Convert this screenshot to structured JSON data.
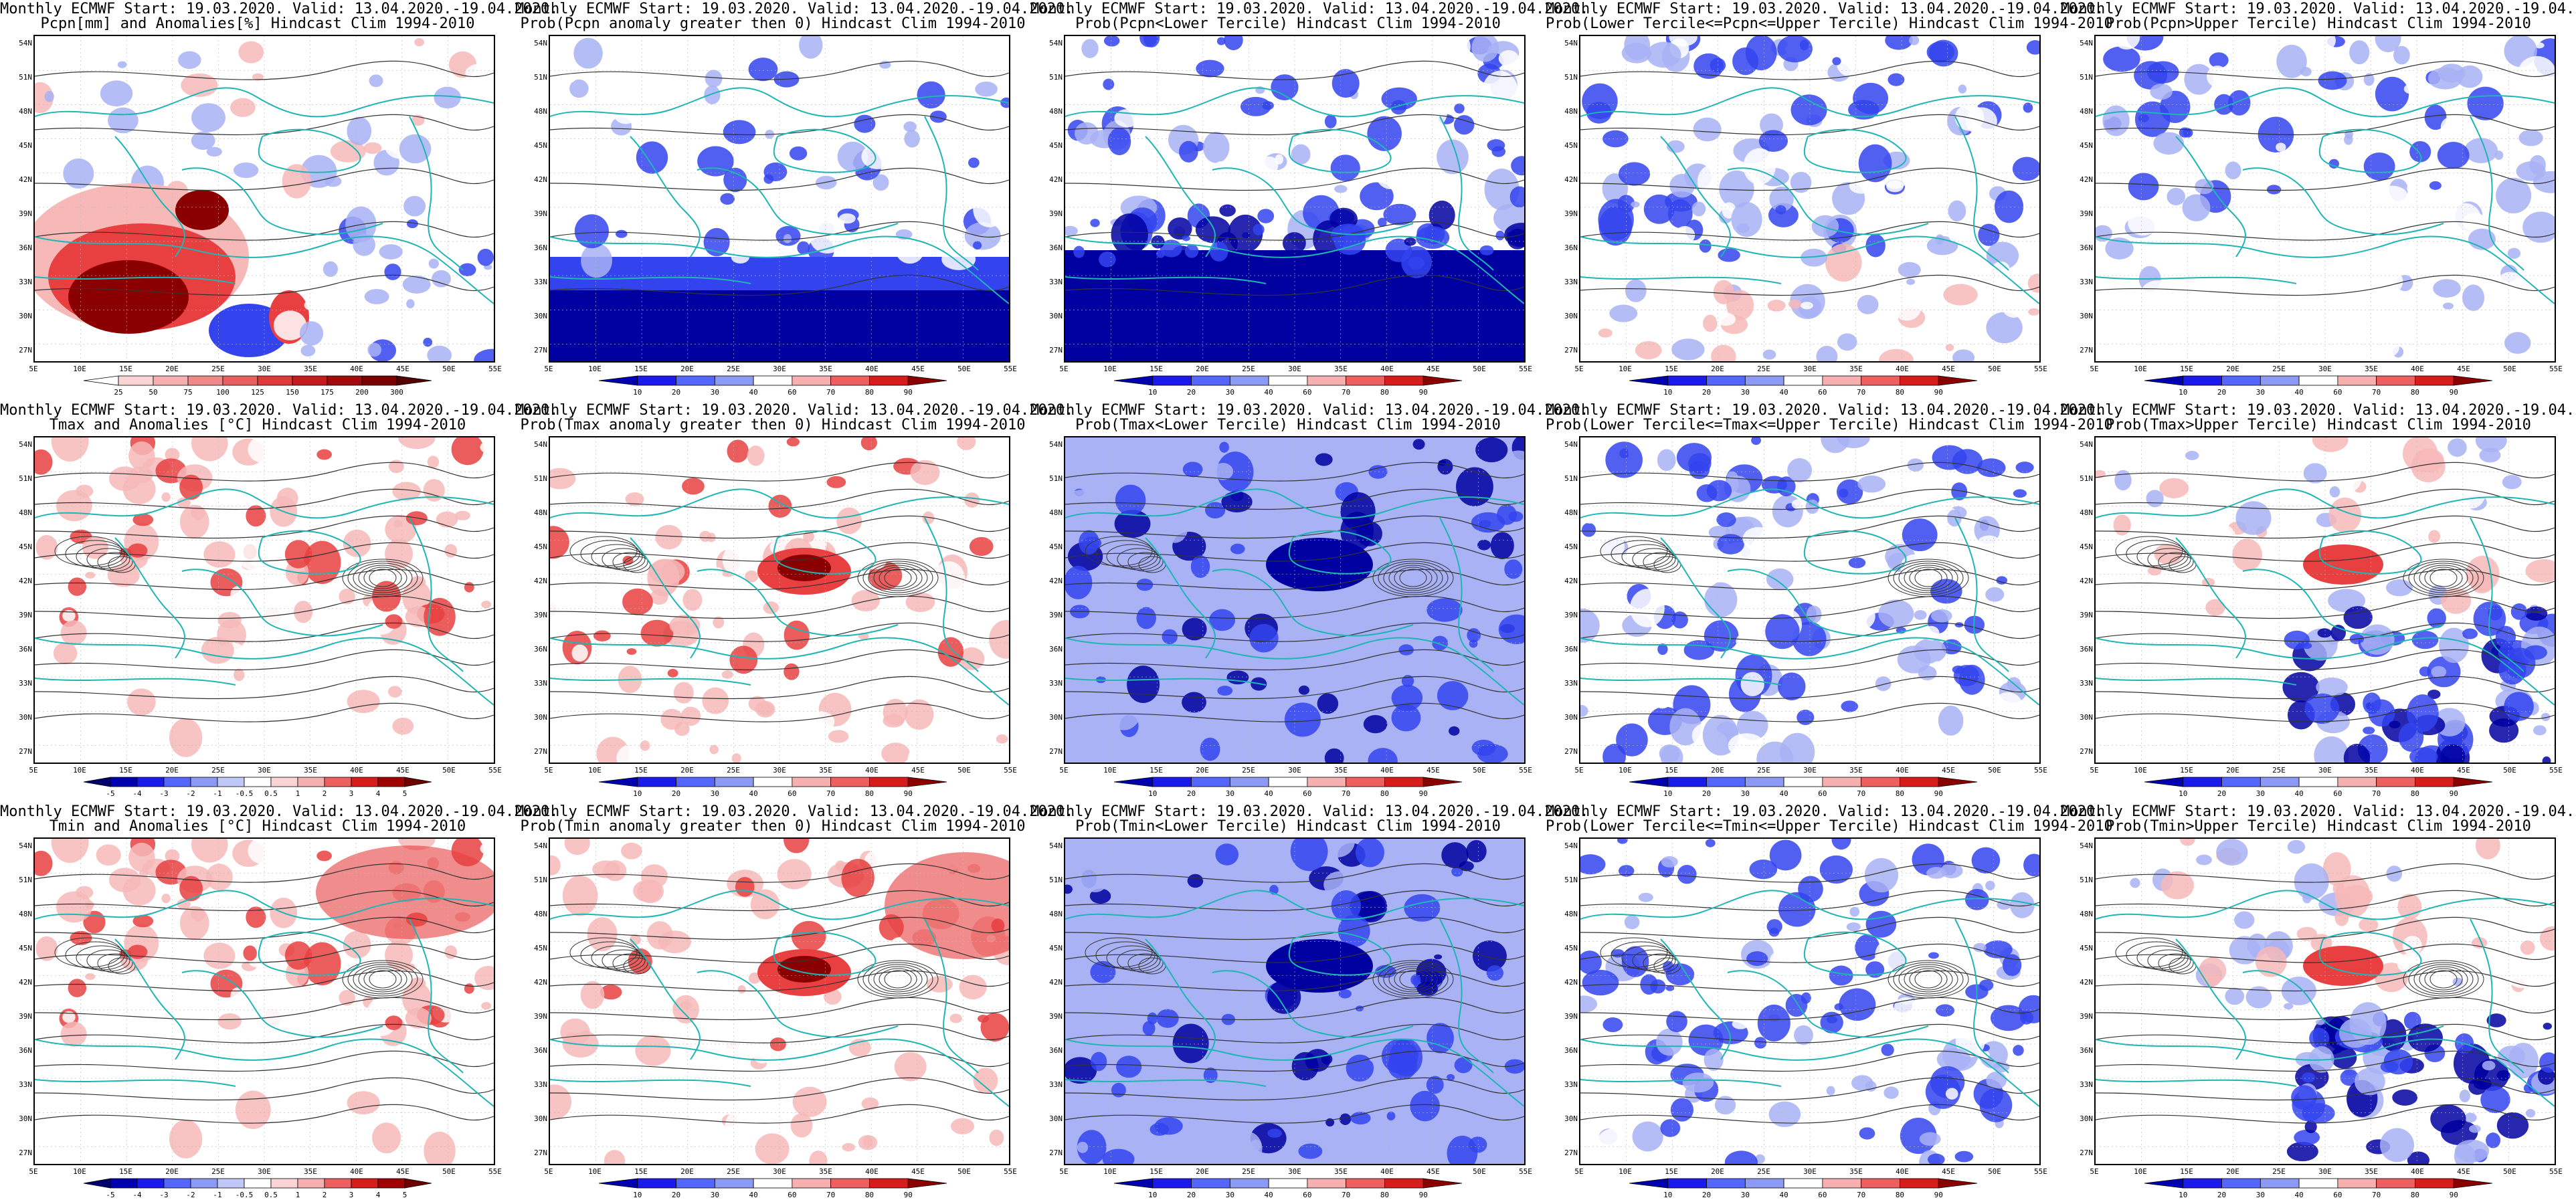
{
  "header_prefix": "Monthly ECMWF Start: 19.03.2020. Valid: 13.04.2020.-19.04.2020.",
  "lat_ticks": [
    "54N",
    "51N",
    "48N",
    "45N",
    "42N",
    "39N",
    "36N",
    "33N",
    "30N",
    "27N"
  ],
  "lon_ticks": [
    "5E",
    "10E",
    "15E",
    "20E",
    "25E",
    "30E",
    "35E",
    "40E",
    "45E",
    "50E",
    "55E"
  ],
  "colors": {
    "coast": "#1fb5b5",
    "contour": "#333333",
    "blue_dark": "#0000a0",
    "blue_mid": "#3344ee",
    "blue_light": "#a8b2f5",
    "red_light": "#f7b8b8",
    "red_mid": "#e84040",
    "red_dark": "#8a0000"
  },
  "scales": {
    "pcpn": {
      "labels": [
        "25",
        "50",
        "75",
        "100",
        "125",
        "150",
        "175",
        "200",
        "300"
      ],
      "colors": [
        "#ffffff",
        "#fbd5d5",
        "#f7b0b0",
        "#f08888",
        "#e85f5f",
        "#de3a3a",
        "#c41c1c",
        "#a00a0a",
        "#7a0000",
        "#520000"
      ]
    },
    "prob": {
      "labels": [
        "10",
        "20",
        "30",
        "40",
        "60",
        "70",
        "80",
        "90"
      ],
      "colors": [
        "#0000b0",
        "#1a1aee",
        "#5566ff",
        "#8c99f5",
        "#ffffff",
        "#f7b0b0",
        "#ee6060",
        "#d81c1c",
        "#8a0000"
      ]
    },
    "temp": {
      "labels": [
        "-5",
        "-4",
        "-3",
        "-2",
        "-1",
        "-0.5",
        "0.5",
        "1",
        "2",
        "3",
        "4",
        "5"
      ],
      "colors": [
        "#00006e",
        "#0000b0",
        "#1a1aee",
        "#5566ff",
        "#8c99f5",
        "#c0c8f8",
        "#ffffff",
        "#fbd5d5",
        "#f7b0b0",
        "#ee6060",
        "#d81c1c",
        "#a00000",
        "#6e0000"
      ]
    }
  },
  "panels": [
    {
      "subtitle": "Pcpn[mm] and Anomalies[%] Hindcast Clim 1994-2010",
      "scale": "pcpn",
      "pattern": "pcpn_anom"
    },
    {
      "subtitle": "Prob(Pcpn anomaly greater then 0) Hindcast Clim 1994-2010",
      "scale": "prob",
      "pattern": "pcpn_pos"
    },
    {
      "subtitle": "Prob(Pcpn<Lower Tercile) Hindcast Clim 1994-2010",
      "scale": "prob",
      "pattern": "pcpn_low"
    },
    {
      "subtitle": "Prob(Lower Tercile<=Pcpn<=Upper Tercile) Hindcast Clim 1994-2010",
      "scale": "prob",
      "pattern": "pcpn_mid"
    },
    {
      "subtitle": "Prob(Pcpn>Upper Tercile) Hindcast Clim 1994-2010",
      "scale": "prob",
      "pattern": "pcpn_up"
    },
    {
      "subtitle": "Tmax and Anomalies [°C] Hindcast Clim 1994-2010",
      "scale": "temp",
      "pattern": "tmax_anom"
    },
    {
      "subtitle": "Prob(Tmax anomaly greater then 0) Hindcast Clim 1994-2010",
      "scale": "prob",
      "pattern": "tmax_pos"
    },
    {
      "subtitle": "Prob(Tmax<Lower Tercile) Hindcast Clim 1994-2010",
      "scale": "prob",
      "pattern": "tmax_low"
    },
    {
      "subtitle": "Prob(Lower Tercile<=Tmax<=Upper Tercile) Hindcast Clim 1994-2010",
      "scale": "prob",
      "pattern": "tmax_mid"
    },
    {
      "subtitle": "Prob(Tmax>Upper Tercile) Hindcast Clim 1994-2010",
      "scale": "prob",
      "pattern": "tmax_up"
    },
    {
      "subtitle": "Tmin and Anomalies [°C] Hindcast Clim 1994-2010",
      "scale": "temp",
      "pattern": "tmin_anom"
    },
    {
      "subtitle": "Prob(Tmin anomaly greater then 0) Hindcast Clim 1994-2010",
      "scale": "prob",
      "pattern": "tmin_pos"
    },
    {
      "subtitle": "Prob(Tmin<Lower Tercile) Hindcast Clim 1994-2010",
      "scale": "prob",
      "pattern": "tmin_low"
    },
    {
      "subtitle": "Prob(Lower Tercile<=Tmin<=Upper Tercile) Hindcast Clim 1994-2010",
      "scale": "prob",
      "pattern": "tmin_mid"
    },
    {
      "subtitle": "Prob(Tmin>Upper Tercile) Hindcast Clim 1994-2010",
      "scale": "prob",
      "pattern": "tmin_up"
    }
  ]
}
